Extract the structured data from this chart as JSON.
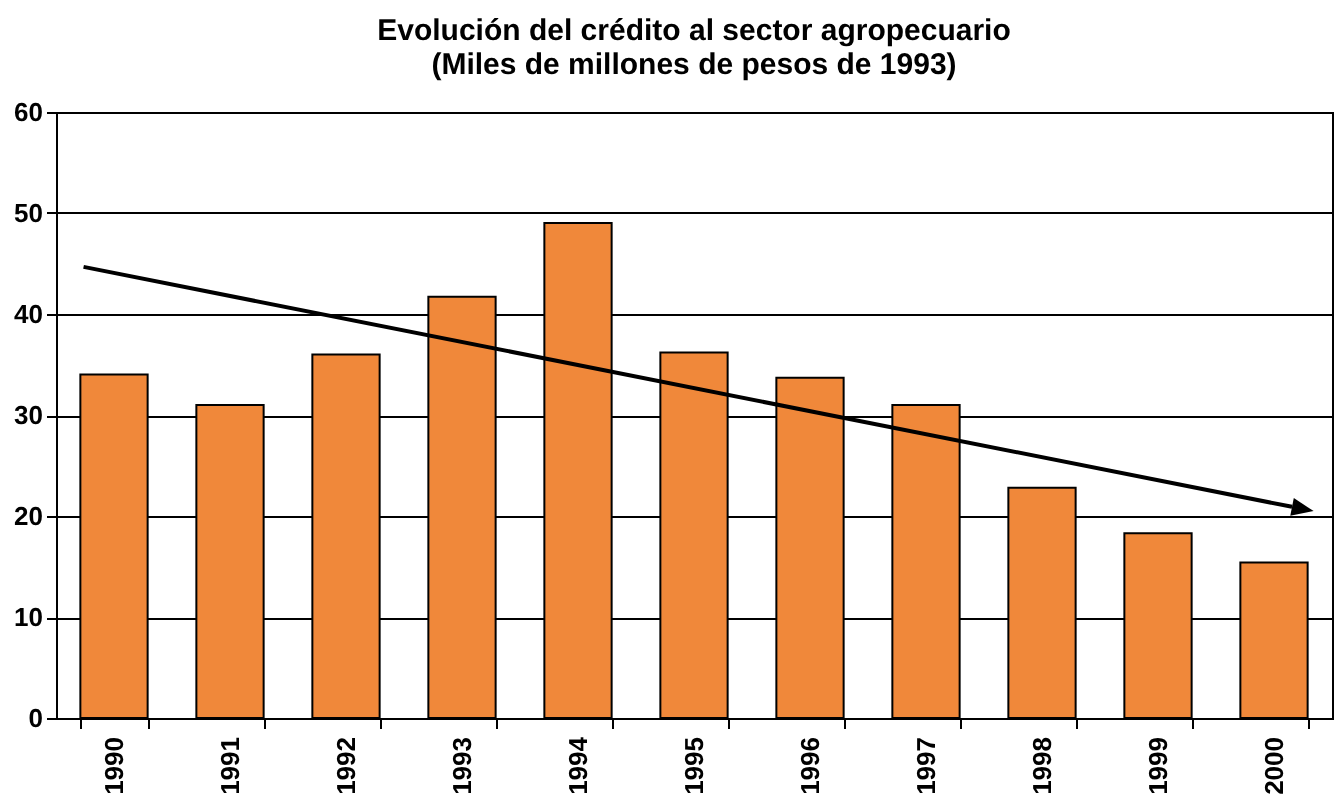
{
  "chart_data": {
    "type": "bar",
    "title": [
      "Evolución del crédito al sector agropecuario",
      "(Miles de millones de pesos de 1993)"
    ],
    "categories": [
      "1990",
      "1991",
      "1992",
      "1993",
      "1994",
      "1995",
      "1996",
      "1997",
      "1998",
      "1999",
      "2000"
    ],
    "series": [
      {
        "color": "#f0883a",
        "values": [
          34,
          31,
          36,
          41.7,
          49,
          36.2,
          33.7,
          31,
          22.8,
          18.3,
          15.4
        ]
      }
    ],
    "ylim": [
      0,
      60
    ],
    "yticks": [
      0,
      10,
      20,
      30,
      40,
      50,
      60
    ],
    "grid": "y"
  }
}
